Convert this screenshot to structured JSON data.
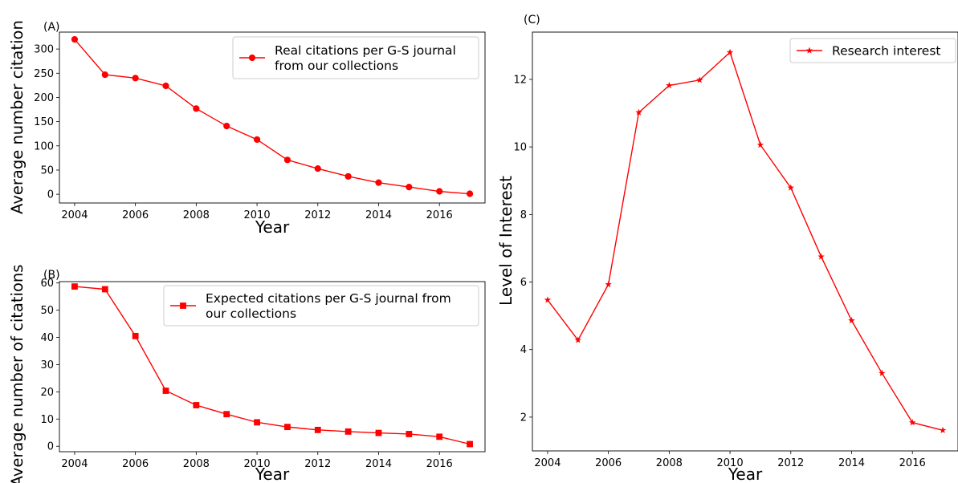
{
  "chart_data": [
    {
      "panel_label": "(A)",
      "type": "line",
      "marker": "circle",
      "color": "#ff0000",
      "xlabel": "Year",
      "ylabel": "Average number citation",
      "xlim": [
        2003.5,
        2017.5
      ],
      "ylim": [
        -18,
        335
      ],
      "xticks": [
        2004,
        2006,
        2008,
        2010,
        2012,
        2014,
        2016
      ],
      "yticks": [
        0,
        50,
        100,
        150,
        200,
        250,
        300
      ],
      "legend_position": "upper right",
      "series": [
        {
          "name": "Real citations per G-S journal\nfrom our collections",
          "x": [
            2004,
            2005,
            2006,
            2007,
            2008,
            2009,
            2010,
            2011,
            2012,
            2013,
            2014,
            2015,
            2016,
            2017
          ],
          "values": [
            320,
            247,
            240,
            224,
            177,
            141,
            113,
            71,
            53,
            37,
            24,
            15,
            6,
            1
          ]
        }
      ]
    },
    {
      "panel_label": "(B)",
      "type": "line",
      "marker": "square",
      "color": "#ff0000",
      "xlabel": "Year",
      "ylabel": "Average number of citations",
      "xlim": [
        2003.5,
        2017.5
      ],
      "ylim": [
        -2,
        60.5
      ],
      "xticks": [
        2004,
        2006,
        2008,
        2010,
        2012,
        2014,
        2016
      ],
      "yticks": [
        0,
        10,
        20,
        30,
        40,
        50,
        60
      ],
      "legend_position": "upper right",
      "series": [
        {
          "name": "Expected citations per G-S journal from\nour collections",
          "x": [
            2004,
            2005,
            2006,
            2007,
            2008,
            2009,
            2010,
            2011,
            2012,
            2013,
            2014,
            2015,
            2016,
            2017
          ],
          "values": [
            58.7,
            57.7,
            40.5,
            20.4,
            15.1,
            11.8,
            8.8,
            7.1,
            6.0,
            5.4,
            4.9,
            4.5,
            3.5,
            0.8
          ]
        }
      ]
    },
    {
      "panel_label": "(C)",
      "type": "line",
      "marker": "star",
      "color": "#ff0000",
      "xlabel": "Year",
      "ylabel": "Level of Interest",
      "xlim": [
        2003.5,
        2017.5
      ],
      "ylim": [
        1.0,
        13.4
      ],
      "xticks": [
        2004,
        2006,
        2008,
        2010,
        2012,
        2014,
        2016
      ],
      "yticks": [
        2,
        4,
        6,
        8,
        10,
        12
      ],
      "legend_position": "upper right",
      "series": [
        {
          "name": "Research interest",
          "x": [
            2004,
            2005,
            2006,
            2007,
            2008,
            2009,
            2010,
            2011,
            2012,
            2013,
            2014,
            2015,
            2016,
            2017
          ],
          "values": [
            5.47,
            4.28,
            5.93,
            11.02,
            11.82,
            11.98,
            12.8,
            10.06,
            8.79,
            6.75,
            4.86,
            3.3,
            1.84,
            1.61
          ]
        }
      ]
    }
  ]
}
